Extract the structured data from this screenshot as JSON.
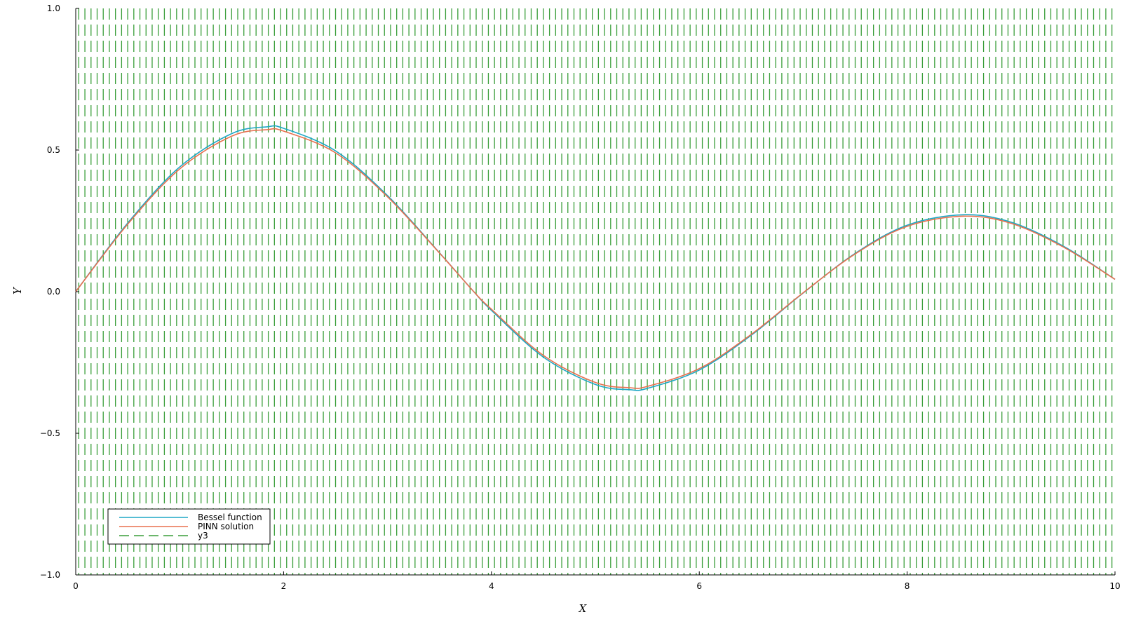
{
  "chart_data": {
    "type": "line",
    "xlabel": "X",
    "ylabel": "Y",
    "xlim": [
      0,
      10
    ],
    "ylim": [
      -1.0,
      1.0
    ],
    "x_ticks": [
      0,
      2,
      4,
      6,
      8,
      10
    ],
    "x_tick_labels": [
      "0",
      "2",
      "4",
      "6",
      "8",
      "10"
    ],
    "y_ticks": [
      -1.0,
      -0.5,
      0.0,
      0.5,
      1.0
    ],
    "y_tick_labels": [
      "−1.0",
      "−0.5",
      "0.0",
      "0.5",
      "1.0"
    ],
    "grid": false,
    "legend_position": "bottom-left",
    "series": [
      {
        "name": "Bessel function",
        "color": "#1ea7c5",
        "style": "solid",
        "x": [
          0,
          0.5,
          1.0,
          1.5,
          1.84,
          2.0,
          2.5,
          3.0,
          3.5,
          3.83,
          4.0,
          4.5,
          5.0,
          5.33,
          5.5,
          6.0,
          6.5,
          7.0,
          7.5,
          8.0,
          8.54,
          9.0,
          9.5,
          10.0
        ],
        "y": [
          0,
          0.2423,
          0.4401,
          0.5579,
          0.5819,
          0.5767,
          0.4971,
          0.3391,
          0.1374,
          0.0,
          -0.066,
          -0.2311,
          -0.3276,
          -0.3461,
          -0.3414,
          -0.2767,
          -0.1538,
          -0.0047,
          0.1352,
          0.2346,
          0.2715,
          0.2453,
          0.1613,
          0.0435
        ]
      },
      {
        "name": "PINN solution",
        "color": "#e8704f",
        "style": "solid",
        "x": [
          0,
          0.5,
          1.0,
          1.5,
          1.84,
          2.0,
          2.5,
          3.0,
          3.5,
          3.83,
          4.0,
          4.5,
          5.0,
          5.33,
          5.5,
          6.0,
          6.5,
          7.0,
          7.5,
          8.0,
          8.54,
          9.0,
          9.5,
          10.0
        ],
        "y": [
          0,
          0.2383,
          0.4331,
          0.5489,
          0.5719,
          0.5667,
          0.4901,
          0.3351,
          0.1364,
          0.0,
          -0.062,
          -0.2251,
          -0.3206,
          -0.3391,
          -0.3344,
          -0.2717,
          -0.1508,
          -0.0037,
          0.1332,
          0.2306,
          0.2665,
          0.2413,
          0.1583,
          0.0435
        ]
      },
      {
        "name": "y3",
        "color": "#3a9e3a",
        "style": "dashed",
        "x_count": 170,
        "values_note_free": true
      }
    ]
  }
}
